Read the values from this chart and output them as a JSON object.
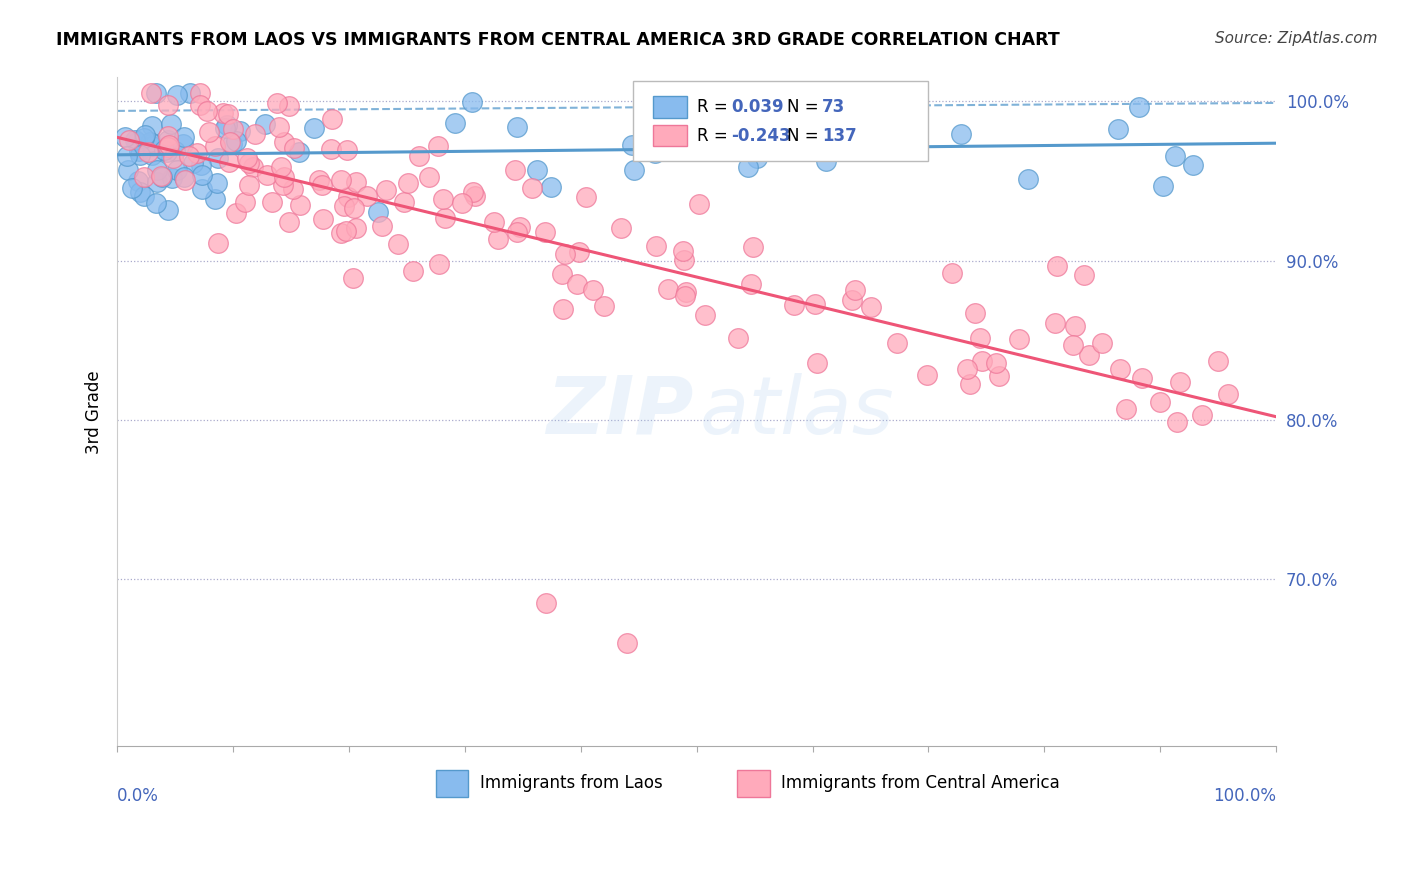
{
  "title": "IMMIGRANTS FROM LAOS VS IMMIGRANTS FROM CENTRAL AMERICA 3RD GRADE CORRELATION CHART",
  "source": "Source: ZipAtlas.com",
  "ylabel": "3rd Grade",
  "xlim": [
    0.0,
    1.0
  ],
  "ylim": [
    0.595,
    1.015
  ],
  "laos_color": "#88bbee",
  "laos_edge": "#5599cc",
  "central_color": "#ffaabb",
  "central_edge": "#ee7799",
  "trend_laos_color": "#5599cc",
  "trend_central_color": "#ee5577",
  "ref_color": "#aaaacc",
  "blue_label_color": "#4466bb",
  "R_laos": 0.039,
  "N_laos": 73,
  "R_central": -0.243,
  "N_central": 137,
  "yticks": [
    0.7,
    0.8,
    0.9,
    1.0
  ],
  "ytick_labels": [
    "70.0%",
    "80.0%",
    "90.0%",
    "100.0%"
  ],
  "legend_label_laos": "Immigrants from Laos",
  "legend_label_central": "Immigrants from Central America",
  "dashed_line_y_start": 0.994,
  "dashed_line_y_end": 0.999
}
